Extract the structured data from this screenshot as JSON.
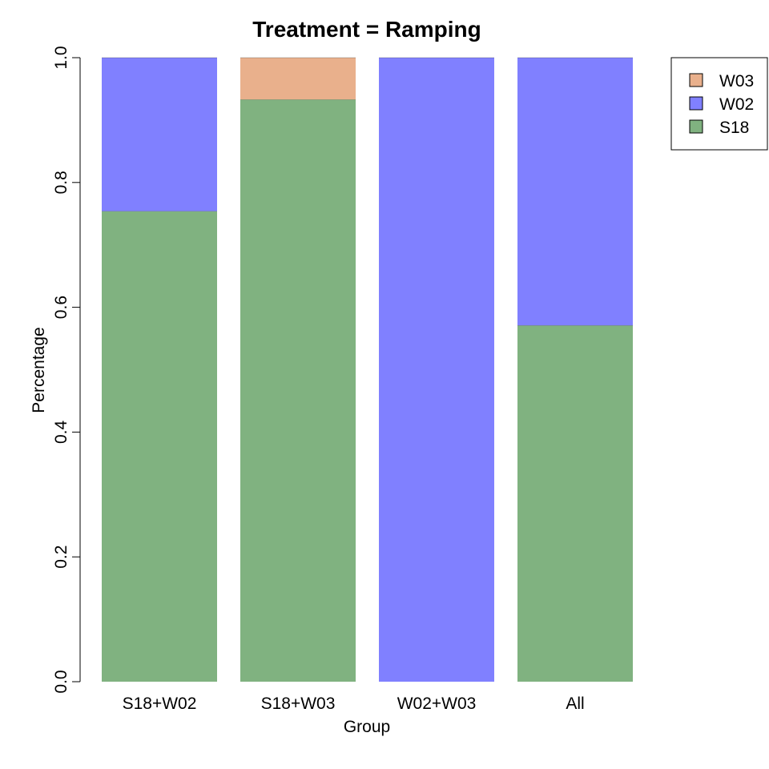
{
  "chart_data": {
    "type": "bar",
    "stacked": true,
    "title": "Treatment = Ramping",
    "xlabel": "Group",
    "ylabel": "Percentage",
    "ylim": [
      0,
      1
    ],
    "yticks": [
      "0.0",
      "0.2",
      "0.4",
      "0.6",
      "0.8",
      "1.0"
    ],
    "categories": [
      "S18+W02",
      "S18+W03",
      "W02+W03",
      "All"
    ],
    "series": [
      {
        "name": "S18",
        "color": "#80B280",
        "values": [
          0.754,
          0.933,
          0.0,
          0.571
        ]
      },
      {
        "name": "W02",
        "color": "#8080FF",
        "values": [
          0.246,
          0.0,
          1.0,
          0.429
        ]
      },
      {
        "name": "W03",
        "color": "#E9B08C",
        "values": [
          0.0,
          0.067,
          0.0,
          0.0
        ]
      }
    ],
    "legend": {
      "position": "top-right",
      "entries": [
        "W03",
        "W02",
        "S18"
      ]
    },
    "grid": false
  }
}
